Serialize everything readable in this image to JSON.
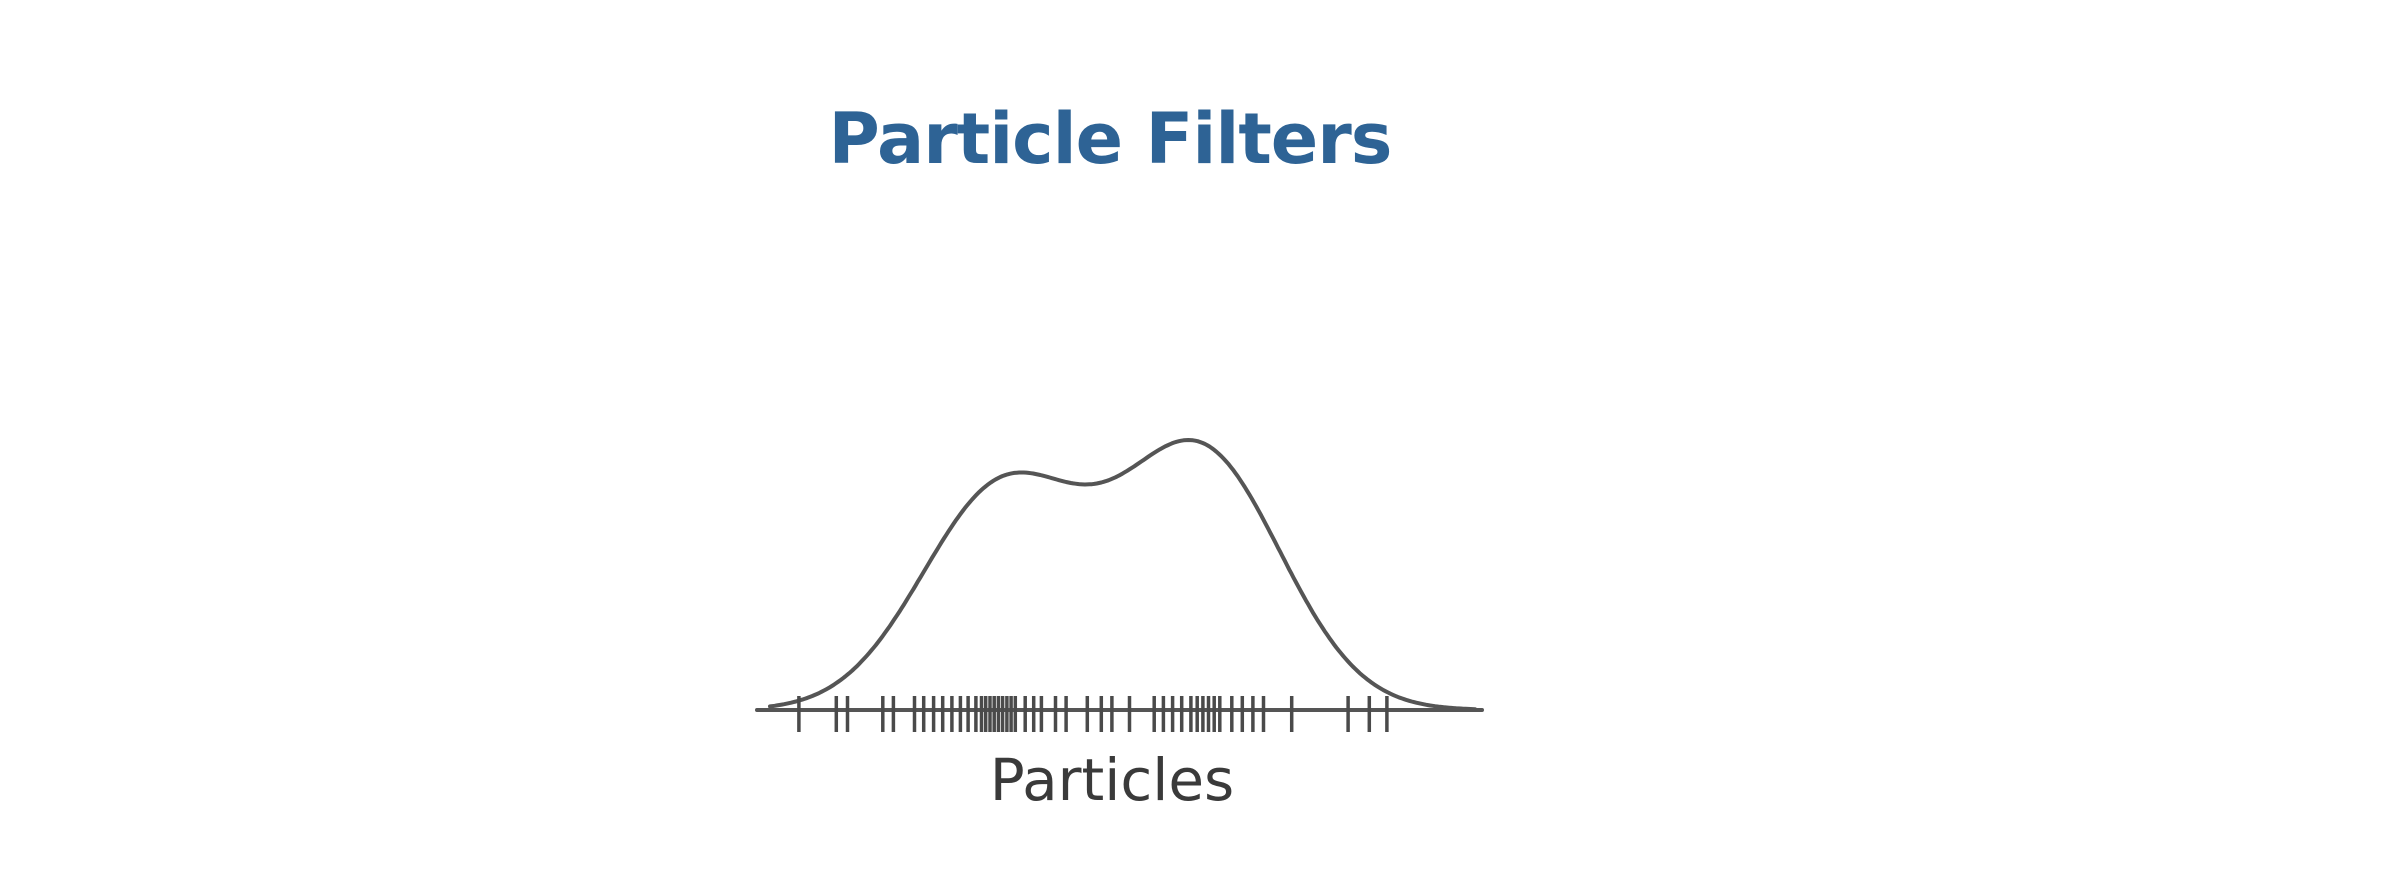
{
  "slide": {
    "title": "Particle Filters"
  },
  "figure": {
    "caption": "Particles",
    "colors": {
      "title": "#2e6395",
      "curve": "#555555",
      "axis": "#555555",
      "ticks": "#4a4a4a"
    },
    "density_peaks": [
      {
        "position": 0.33,
        "height": 0.86
      },
      {
        "position": 0.61,
        "height": 1.0
      }
    ],
    "particles": [
      0.041,
      0.094,
      0.11,
      0.16,
      0.175,
      0.205,
      0.218,
      0.232,
      0.245,
      0.258,
      0.27,
      0.281,
      0.292,
      0.3,
      0.306,
      0.312,
      0.318,
      0.324,
      0.33,
      0.336,
      0.342,
      0.348,
      0.362,
      0.374,
      0.385,
      0.405,
      0.42,
      0.45,
      0.47,
      0.485,
      0.51,
      0.545,
      0.558,
      0.571,
      0.584,
      0.597,
      0.606,
      0.614,
      0.622,
      0.63,
      0.638,
      0.655,
      0.67,
      0.685,
      0.7,
      0.74,
      0.82,
      0.85,
      0.875
    ]
  }
}
